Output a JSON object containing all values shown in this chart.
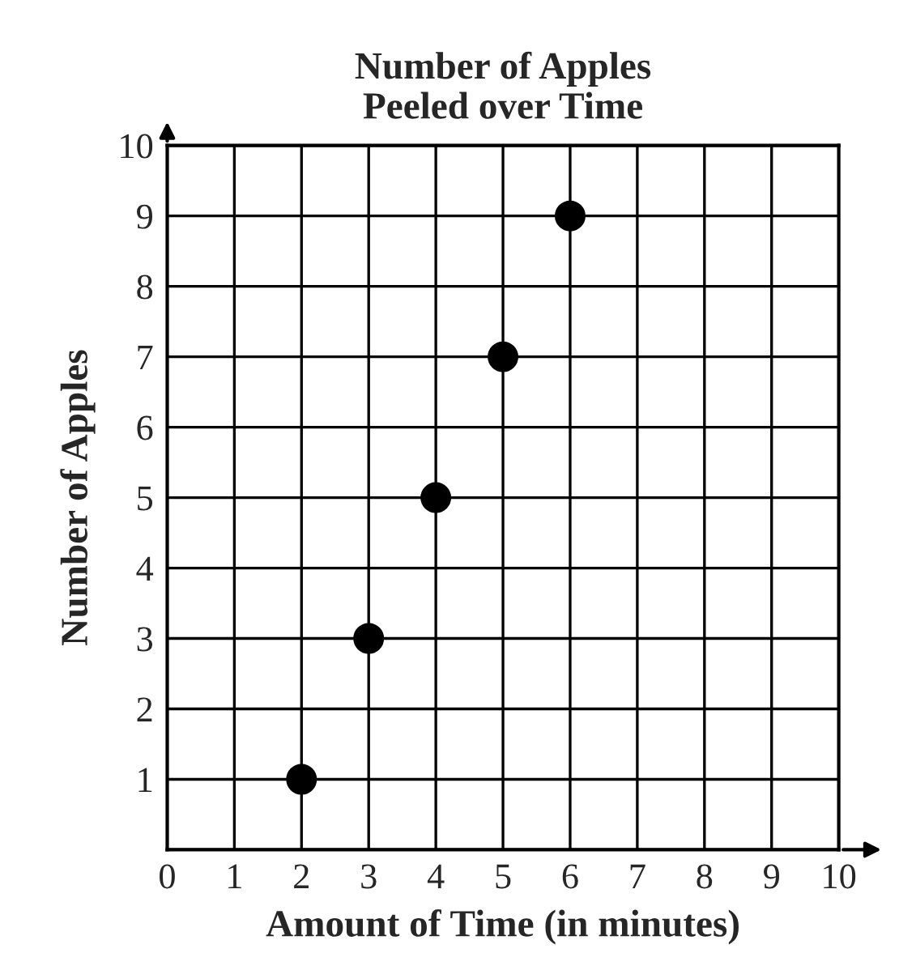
{
  "chart_data": {
    "type": "scatter",
    "title": "Number of Apples\nPeeled over Time",
    "xlabel": "Amount of Time (in minutes)",
    "ylabel": "Number of Apples",
    "x": [
      2,
      3,
      4,
      5,
      6
    ],
    "series": [
      {
        "color": "#000000",
        "values": [
          1,
          3,
          5,
          7,
          9
        ]
      }
    ],
    "xlim": [
      0,
      10
    ],
    "ylim": [
      0,
      10
    ],
    "xticks": [
      0,
      1,
      2,
      3,
      4,
      5,
      6,
      7,
      8,
      9,
      10
    ],
    "yticks": [
      {
        "value": 0,
        "label": null
      },
      1,
      2,
      3,
      4,
      5,
      6,
      7,
      8,
      9,
      10
    ],
    "grid": true,
    "marker": "circle"
  }
}
